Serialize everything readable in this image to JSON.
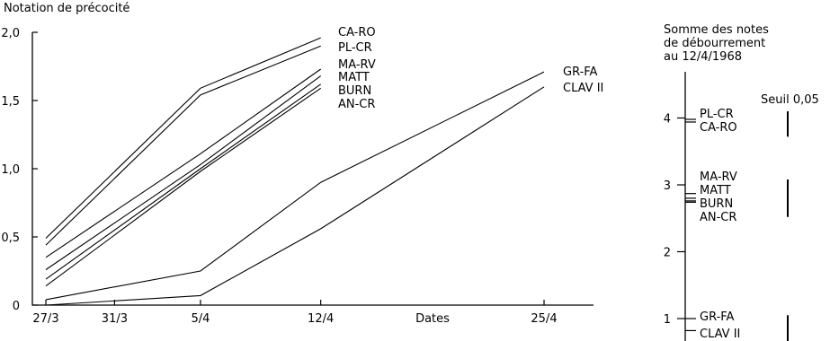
{
  "chart_data": [
    {
      "type": "line",
      "title": "Notation de précocité",
      "xlabel": "Dates",
      "ylabel": "",
      "x": [
        "27/3",
        "31/3",
        "5/4",
        "12/4",
        "25/4"
      ],
      "x_values_days": [
        27,
        31,
        36,
        43,
        56
      ],
      "ylim": [
        0,
        2.0
      ],
      "yticks": [
        "0",
        "0,5",
        "1,0",
        "1,5",
        "2,0"
      ],
      "ytick_values": [
        0,
        0.5,
        1.0,
        1.5,
        2.0
      ],
      "grid": false,
      "series": [
        {
          "name": "CA-RO",
          "x": [
            27,
            36,
            43
          ],
          "values": [
            0.49,
            1.59,
            1.96
          ]
        },
        {
          "name": "PL-CR",
          "x": [
            27,
            36,
            43
          ],
          "values": [
            0.44,
            1.54,
            1.9
          ]
        },
        {
          "name": "MA-RV",
          "x": [
            27,
            36,
            43
          ],
          "values": [
            0.35,
            1.11,
            1.73
          ]
        },
        {
          "name": "MATT",
          "x": [
            27,
            36,
            43
          ],
          "values": [
            0.26,
            1.03,
            1.68
          ]
        },
        {
          "name": "BURN",
          "x": [
            27,
            36,
            43
          ],
          "values": [
            0.19,
            1.0,
            1.62
          ]
        },
        {
          "name": "AN-CR",
          "x": [
            27,
            36,
            43
          ],
          "values": [
            0.14,
            0.98,
            1.59
          ]
        },
        {
          "name": "GR-FA",
          "x": [
            27,
            36,
            43,
            56
          ],
          "values": [
            0.04,
            0.25,
            0.9,
            1.71
          ]
        },
        {
          "name": "CLAV II",
          "x": [
            27,
            36,
            43,
            56
          ],
          "values": [
            0.0,
            0.07,
            0.56,
            1.6
          ]
        }
      ],
      "labels_top": [
        "CA-RO",
        "PL-CR",
        "MA-RV",
        "MATT",
        "BURN",
        "AN-CR"
      ],
      "labels_late": [
        "GR-FA",
        "CLAV II"
      ]
    },
    {
      "type": "scatter",
      "title": "Somme des notes de débourrement au 12/4/1968",
      "title_lines": [
        "Somme des notes",
        "de débourrement",
        "au 12/4/1968"
      ],
      "ylim": [
        0.5,
        4.9
      ],
      "yticks": [
        "1",
        "2",
        "3",
        "4"
      ],
      "ytick_values": [
        1,
        2,
        3,
        4
      ],
      "annotation": "Seuil 0,05",
      "items": [
        {
          "name": "PL-CR",
          "value": 3.98
        },
        {
          "name": "CA-RO",
          "value": 3.94
        },
        {
          "name": "MA-RV",
          "value": 2.87
        },
        {
          "name": "MATT",
          "value": 2.8
        },
        {
          "name": "BURN",
          "value": 2.76
        },
        {
          "name": "AN-CR",
          "value": 2.74
        },
        {
          "name": "GR-FA",
          "value": 1.0
        },
        {
          "name": "CLAV II",
          "value": 0.82
        }
      ],
      "label_lines": [
        "PL-CR",
        "CA-RO",
        "MA-RV",
        "MATT",
        "BURN",
        "AN-CR",
        "GR-FA",
        "CLAV II"
      ],
      "threshold_bars": [
        {
          "from": 3.72,
          "to": 4.1
        },
        {
          "from": 2.52,
          "to": 3.08
        },
        {
          "from": 0.5,
          "to": 1.05
        }
      ]
    }
  ]
}
